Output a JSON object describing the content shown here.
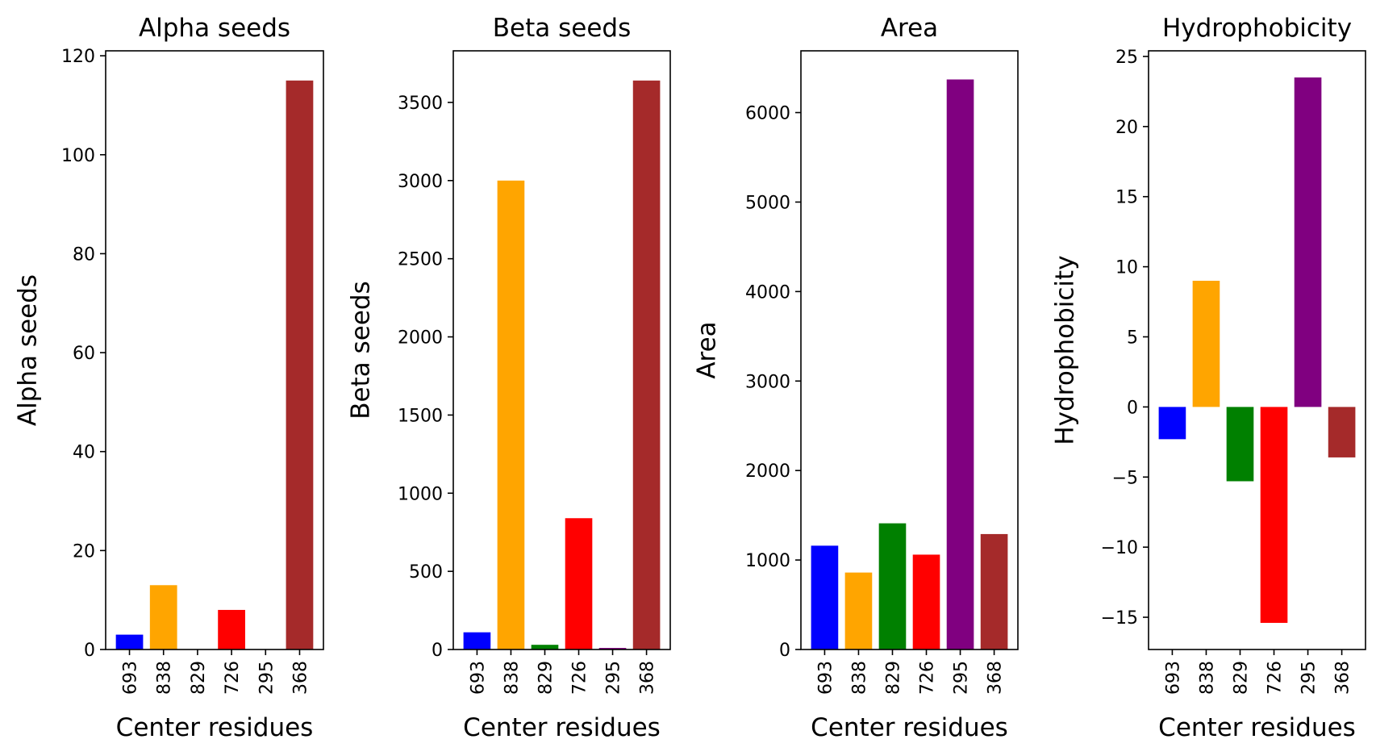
{
  "chart_data": [
    {
      "type": "bar",
      "title": "Alpha seeds",
      "xlabel": "Center residues",
      "ylabel": "Alpha seeds",
      "categories": [
        "693",
        "838",
        "829",
        "726",
        "295",
        "368"
      ],
      "values": [
        3,
        13,
        0,
        8,
        0,
        115
      ],
      "colors": [
        "#0000ff",
        "#ffa500",
        "#008000",
        "#ff0000",
        "#800080",
        "#a52a2a"
      ],
      "ylim": [
        0,
        121
      ],
      "yticks": [
        0,
        20,
        40,
        60,
        80,
        100,
        120
      ],
      "ytick_labels": [
        "0",
        "20",
        "40",
        "60",
        "80",
        "100",
        "120"
      ],
      "grid": false
    },
    {
      "type": "bar",
      "title": "Beta seeds",
      "xlabel": "Center residues",
      "ylabel": "Beta seeds",
      "categories": [
        "693",
        "838",
        "829",
        "726",
        "295",
        "368"
      ],
      "values": [
        110,
        3000,
        30,
        840,
        10,
        3640
      ],
      "colors": [
        "#0000ff",
        "#ffa500",
        "#008000",
        "#ff0000",
        "#800080",
        "#a52a2a"
      ],
      "ylim": [
        0,
        3830
      ],
      "yticks": [
        0,
        500,
        1000,
        1500,
        2000,
        2500,
        3000,
        3500
      ],
      "ytick_labels": [
        "0",
        "500",
        "1000",
        "1500",
        "2000",
        "2500",
        "3000",
        "3500"
      ],
      "grid": false
    },
    {
      "type": "bar",
      "title": "Area",
      "xlabel": "Center residues",
      "ylabel": "Area",
      "categories": [
        "693",
        "838",
        "829",
        "726",
        "295",
        "368"
      ],
      "values": [
        1160,
        860,
        1410,
        1060,
        6370,
        1290
      ],
      "colors": [
        "#0000ff",
        "#ffa500",
        "#008000",
        "#ff0000",
        "#800080",
        "#a52a2a"
      ],
      "ylim": [
        0,
        6690
      ],
      "yticks": [
        0,
        1000,
        2000,
        3000,
        4000,
        5000,
        6000
      ],
      "ytick_labels": [
        "0",
        "1000",
        "2000",
        "3000",
        "4000",
        "5000",
        "6000"
      ],
      "grid": false
    },
    {
      "type": "bar",
      "title": "Hydrophobicity",
      "xlabel": "Center residues",
      "ylabel": "Hydrophobicity",
      "categories": [
        "693",
        "838",
        "829",
        "726",
        "295",
        "368"
      ],
      "values": [
        -2.3,
        9.0,
        -5.3,
        -15.4,
        23.5,
        -3.6
      ],
      "colors": [
        "#0000ff",
        "#ffa500",
        "#008000",
        "#ff0000",
        "#800080",
        "#a52a2a"
      ],
      "ylim": [
        -17.3,
        25.4
      ],
      "yticks": [
        -15,
        -10,
        -5,
        0,
        5,
        10,
        15,
        20,
        25
      ],
      "ytick_labels": [
        "−15",
        "−10",
        "−5",
        "0",
        "5",
        "10",
        "15",
        "20",
        "25"
      ],
      "grid": false
    }
  ]
}
